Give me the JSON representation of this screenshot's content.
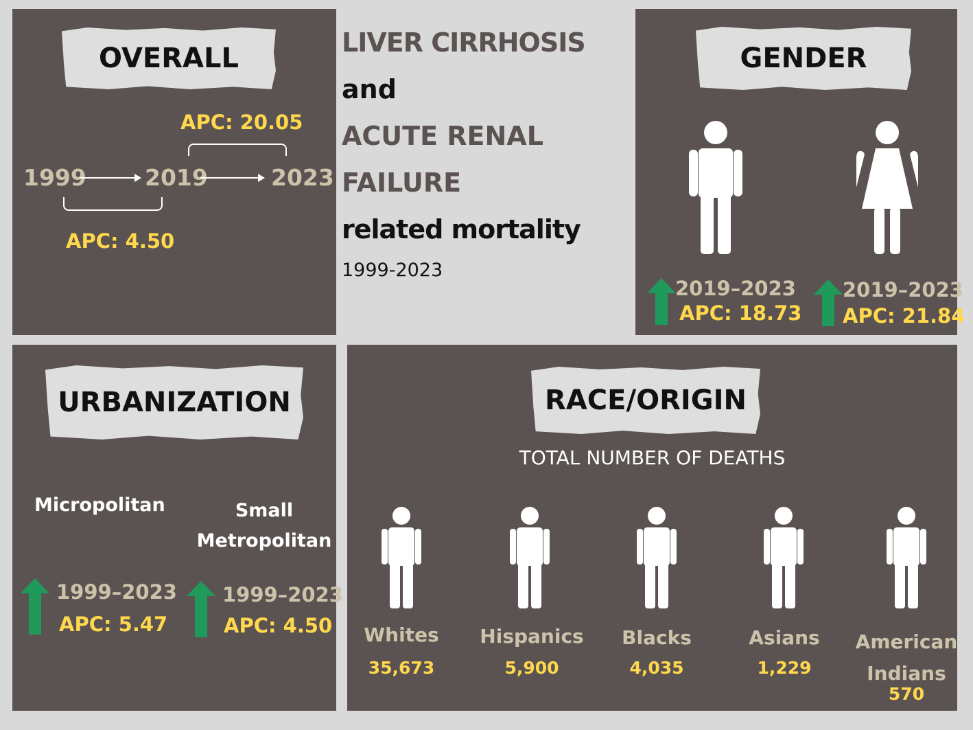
{
  "title": {
    "line1": "LIVER CIRRHOSIS",
    "line2": "and",
    "line3": "ACUTE RENAL",
    "line4": "FAILURE",
    "line5": "related mortality",
    "years": "1999-2023"
  },
  "overall": {
    "heading": "OVERALL",
    "year_start": "1999",
    "year_mid": "2019",
    "year_end": "2023",
    "apc_first": "APC: 4.50",
    "apc_second": "APC: 20.05"
  },
  "gender": {
    "heading": "GENDER",
    "male": {
      "period": "2019–2023",
      "apc": "APC: 18.73"
    },
    "female": {
      "period": "2019–2023",
      "apc": "APC: 21.84"
    }
  },
  "urbanization": {
    "heading": "URBANIZATION",
    "micro": {
      "label": "Micropolitan",
      "period": "1999–2023",
      "apc": "APC: 5.47"
    },
    "small_metro": {
      "label_line1": "Small",
      "label_line2": "Metropolitan",
      "period": "1999–2023",
      "apc": "APC: 4.50"
    }
  },
  "race": {
    "heading": "RACE/ORIGIN",
    "subtitle": "TOTAL NUMBER OF DEATHS",
    "groups": [
      {
        "label": "Whites",
        "value": "35,673"
      },
      {
        "label": "Hispanics",
        "value": "5,900"
      },
      {
        "label": "Blacks",
        "value": "4,035"
      },
      {
        "label": "Asians",
        "value": "1,229"
      },
      {
        "label_line1": "American",
        "label_line2": "Indians",
        "value": "570"
      }
    ]
  },
  "colors": {
    "panel": "#5b5351",
    "background": "#d9d9d9",
    "accent_yellow": "#ffd84d",
    "accent_tan": "#cdc3aa",
    "arrow_green": "#1f9a5b"
  },
  "icons": [
    "male-person-icon",
    "female-person-icon",
    "up-arrow-icon",
    "right-arrow-icon"
  ]
}
